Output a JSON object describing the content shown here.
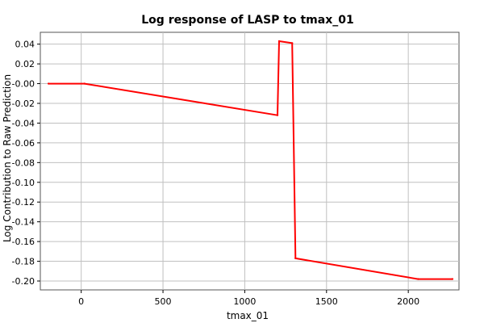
{
  "chart_data": {
    "type": "line",
    "title": "Log response of LASP to tmax_01",
    "xlabel": "tmax_01",
    "ylabel": "Log Contribution to Raw Prediction",
    "xlim": [
      -250,
      2310
    ],
    "ylim": [
      -0.209,
      0.052
    ],
    "x_ticks": [
      0,
      500,
      1000,
      1500,
      2000
    ],
    "x_tick_labels": [
      "0",
      "500",
      "1000",
      "1500",
      "2000"
    ],
    "y_ticks": [
      0.04,
      0.02,
      0.0,
      -0.02,
      -0.04,
      -0.06,
      -0.08,
      -0.1,
      -0.12,
      -0.14,
      -0.16,
      -0.18,
      -0.2
    ],
    "y_tick_labels": [
      "0.04",
      "0.02",
      "-0.00",
      "-0.02",
      "-0.04",
      "-0.06",
      "-0.08",
      "-0.10",
      "-0.12",
      "-0.14",
      "-0.16",
      "-0.18",
      "-0.20"
    ],
    "grid": true,
    "colors": {
      "line": "#ff0000",
      "grid": "#c0c0c0",
      "background": "#ffffff"
    },
    "series": [
      {
        "x": [
          -200,
          20,
          1200,
          1210,
          1290,
          1310,
          2060,
          2270
        ],
        "y": [
          0.0,
          0.0,
          -0.032,
          0.043,
          0.041,
          -0.177,
          -0.198,
          -0.198
        ]
      }
    ]
  }
}
